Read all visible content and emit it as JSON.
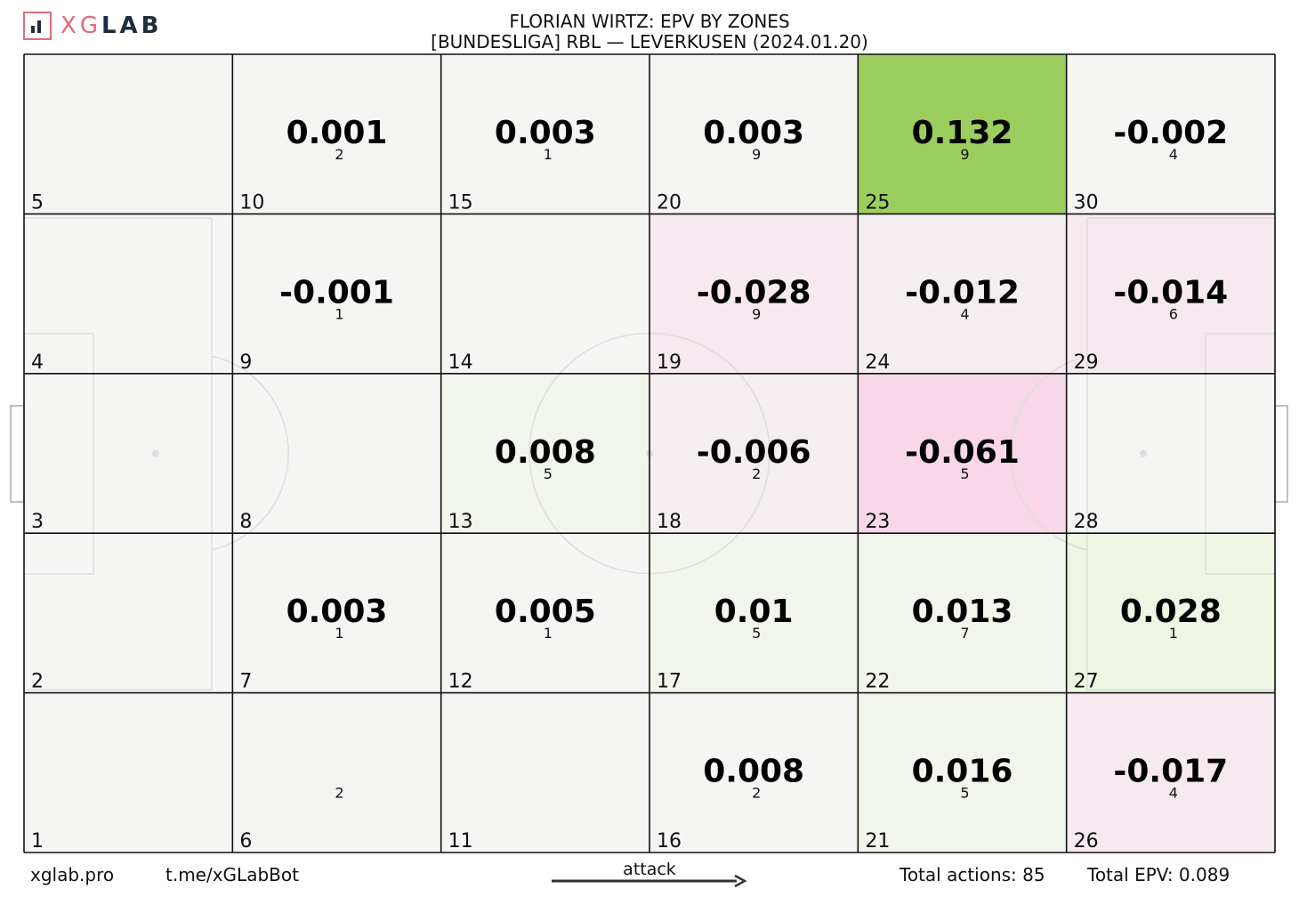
{
  "logo": {
    "text_x": "X",
    "text_g": "G",
    "text_lab": "LAB"
  },
  "title": "FLORIAN WIRTZ: EPV BY ZONES",
  "subtitle": "[BUNDESLIGA] RBL —  LEVERKUSEN (2024.01.20)",
  "footer": {
    "site": "xglab.pro",
    "bot": "t.me/xGLabBot",
    "attack": "attack",
    "total_actions": "Total actions: 85",
    "total_epv": "Total EPV: 0.089"
  },
  "colors": {
    "empty": "#f5f5f4",
    "strong_positive": "#9bcd5f",
    "light_positive": "#f1f5ec",
    "light_positive_2": "#eef5e3",
    "light_negative": "#f7e9f0",
    "mid_negative": "#f8d7e8",
    "faint_negative": "#f5eef1",
    "grid_line": "#111111",
    "pitch_line": "#dddddd"
  },
  "chart_data": {
    "type": "heatmap",
    "grid": {
      "columns": 6,
      "rows": 5
    },
    "zones": [
      {
        "zone": 1,
        "epv": null,
        "actions": null,
        "color": "empty"
      },
      {
        "zone": 2,
        "epv": null,
        "actions": null,
        "color": "empty"
      },
      {
        "zone": 3,
        "epv": null,
        "actions": null,
        "color": "empty"
      },
      {
        "zone": 4,
        "epv": null,
        "actions": null,
        "color": "empty"
      },
      {
        "zone": 5,
        "epv": null,
        "actions": null,
        "color": "empty"
      },
      {
        "zone": 6,
        "epv": null,
        "actions": "2",
        "color": "empty"
      },
      {
        "zone": 7,
        "epv": "0.003",
        "actions": "1",
        "color": "empty"
      },
      {
        "zone": 8,
        "epv": null,
        "actions": null,
        "color": "empty"
      },
      {
        "zone": 9,
        "epv": "-0.001",
        "actions": "1",
        "color": "empty"
      },
      {
        "zone": 10,
        "epv": "0.001",
        "actions": "2",
        "color": "empty"
      },
      {
        "zone": 11,
        "epv": null,
        "actions": null,
        "color": "empty"
      },
      {
        "zone": 12,
        "epv": "0.005",
        "actions": "1",
        "color": "empty"
      },
      {
        "zone": 13,
        "epv": "0.008",
        "actions": "5",
        "color": "light_positive"
      },
      {
        "zone": 14,
        "epv": null,
        "actions": null,
        "color": "empty"
      },
      {
        "zone": 15,
        "epv": "0.003",
        "actions": "1",
        "color": "empty"
      },
      {
        "zone": 16,
        "epv": "0.008",
        "actions": "2",
        "color": "empty"
      },
      {
        "zone": 17,
        "epv": "0.01",
        "actions": "5",
        "color": "light_positive"
      },
      {
        "zone": 18,
        "epv": "-0.006",
        "actions": "2",
        "color": "faint_negative"
      },
      {
        "zone": 19,
        "epv": "-0.028",
        "actions": "9",
        "color": "light_negative"
      },
      {
        "zone": 20,
        "epv": "0.003",
        "actions": "9",
        "color": "empty"
      },
      {
        "zone": 21,
        "epv": "0.016",
        "actions": "5",
        "color": "light_positive"
      },
      {
        "zone": 22,
        "epv": "0.013",
        "actions": "7",
        "color": "light_positive"
      },
      {
        "zone": 23,
        "epv": "-0.061",
        "actions": "5",
        "color": "mid_negative"
      },
      {
        "zone": 24,
        "epv": "-0.012",
        "actions": "4",
        "color": "faint_negative"
      },
      {
        "zone": 25,
        "epv": "0.132",
        "actions": "9",
        "color": "strong_positive"
      },
      {
        "zone": 26,
        "epv": "-0.017",
        "actions": "4",
        "color": "light_negative"
      },
      {
        "zone": 27,
        "epv": "0.028",
        "actions": "1",
        "color": "light_positive_2"
      },
      {
        "zone": 28,
        "epv": null,
        "actions": null,
        "color": "empty"
      },
      {
        "zone": 29,
        "epv": "-0.014",
        "actions": "6",
        "color": "light_negative"
      },
      {
        "zone": 30,
        "epv": "-0.002",
        "actions": "4",
        "color": "empty"
      }
    ]
  }
}
